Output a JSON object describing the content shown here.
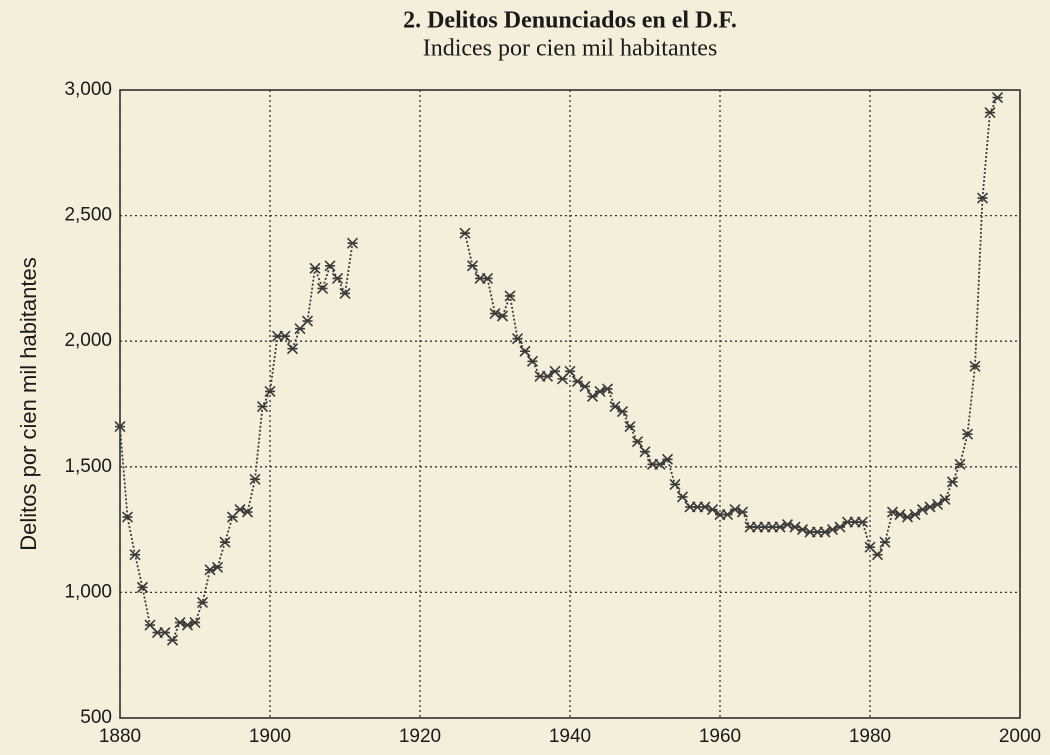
{
  "chart_data": {
    "type": "line",
    "title": "2. Delitos Denunciados en el D.F.",
    "subtitle": "Indices por cien mil habitantes",
    "y_label": "Delitos por cien mil habitantes",
    "x": [
      1880,
      1881,
      1882,
      1883,
      1884,
      1885,
      1886,
      1887,
      1888,
      1889,
      1890,
      1891,
      1892,
      1893,
      1894,
      1895,
      1896,
      1897,
      1898,
      1899,
      1900,
      1901,
      1902,
      1903,
      1904,
      1905,
      1906,
      1907,
      1908,
      1909,
      1910,
      1911,
      1912,
      1913,
      1914,
      1915,
      1916,
      1917,
      1918,
      1919,
      1920,
      1921,
      1922,
      1923,
      1924,
      1925,
      1926,
      1927,
      1928,
      1929,
      1930,
      1931,
      1932,
      1933,
      1934,
      1935,
      1936,
      1937,
      1938,
      1939,
      1940,
      1941,
      1942,
      1943,
      1944,
      1945,
      1946,
      1947,
      1948,
      1949,
      1950,
      1951,
      1952,
      1953,
      1954,
      1955,
      1956,
      1957,
      1958,
      1959,
      1960,
      1961,
      1962,
      1963,
      1964,
      1965,
      1966,
      1967,
      1968,
      1969,
      1970,
      1971,
      1972,
      1973,
      1974,
      1975,
      1976,
      1977,
      1978,
      1979,
      1980,
      1981,
      1982,
      1983,
      1984,
      1985,
      1986,
      1987,
      1988,
      1989,
      1990,
      1991,
      1992,
      1993,
      1994,
      1995,
      1996,
      1997
    ],
    "series": [
      {
        "name": "Delitos",
        "color": "#3a3a3a",
        "values": [
          1660,
          1300,
          1150,
          1020,
          870,
          840,
          840,
          810,
          880,
          870,
          880,
          960,
          1090,
          1100,
          1200,
          1300,
          1330,
          1320,
          1450,
          1740,
          1800,
          2020,
          2020,
          1970,
          2050,
          2080,
          2290,
          2210,
          2300,
          2250,
          2190,
          2390,
          null,
          null,
          null,
          null,
          null,
          null,
          null,
          null,
          null,
          null,
          null,
          null,
          null,
          null,
          2430,
          2300,
          2250,
          2250,
          2110,
          2100,
          2180,
          2010,
          1960,
          1920,
          1860,
          1860,
          1880,
          1850,
          1880,
          1840,
          1820,
          1780,
          1800,
          1810,
          1740,
          1720,
          1660,
          1600,
          1560,
          1510,
          1510,
          1530,
          1430,
          1380,
          1340,
          1340,
          1340,
          1330,
          1310,
          1310,
          1330,
          1320,
          1260,
          1260,
          1260,
          1260,
          1260,
          1270,
          1260,
          1250,
          1240,
          1240,
          1240,
          1250,
          1260,
          1280,
          1280,
          1280,
          1180,
          1150,
          1200,
          1320,
          1310,
          1300,
          1310,
          1330,
          1340,
          1350,
          1370,
          1440,
          1510,
          1630,
          1900,
          2570,
          2910,
          2970
        ]
      }
    ],
    "xlim": [
      1880,
      2000
    ],
    "xticks": [
      1880,
      1900,
      1920,
      1940,
      1960,
      1980,
      2000
    ],
    "ylim": [
      500,
      3000
    ],
    "yticks": [
      {
        "value": 500,
        "label": "500"
      },
      {
        "value": 1000,
        "label": "1,000"
      },
      {
        "value": 1500,
        "label": "1,500"
      },
      {
        "value": 2000,
        "label": "2,000"
      },
      {
        "value": 2500,
        "label": "2,500"
      },
      {
        "value": 3000,
        "label": "3,000"
      }
    ],
    "grid": true
  }
}
